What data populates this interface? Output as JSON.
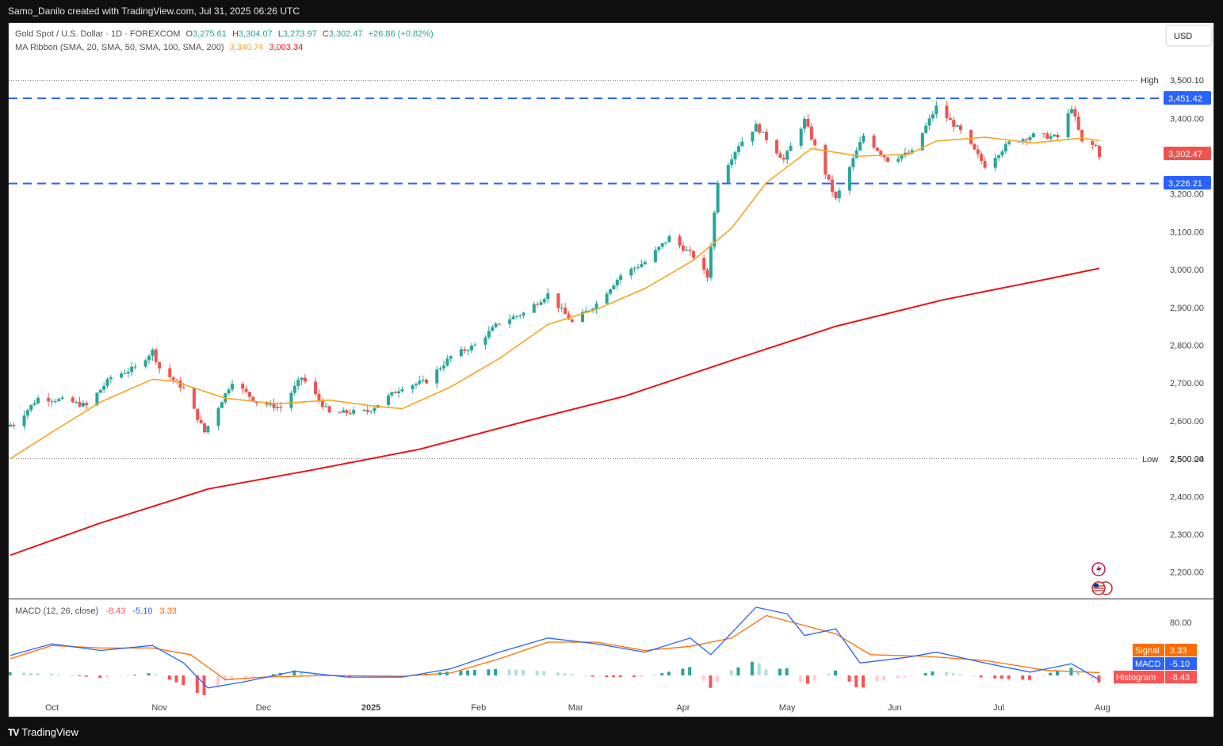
{
  "header": {
    "credit": "Samo_Danilo created with TradingView.com, Jul 31, 2025 06:26 UTC"
  },
  "legend": {
    "symbol": "Gold Spot / U.S. Dollar · 1D · FOREXCOM",
    "o_label": "O",
    "o": "3,275.61",
    "h_label": "H",
    "h": "3,304.07",
    "l_label": "L",
    "l": "3,273.97",
    "c_label": "C",
    "c": "3,302.47",
    "change": "+26.86 (+0.82%)",
    "ma_label": "MA Ribbon (SMA, 20, SMA, 50, SMA, 100, SMA, 200)",
    "ma1": "3,340.74",
    "ma2": "3,003.34",
    "macd_label": "MACD (12, 26, close)",
    "macd_v1": "-8.43",
    "macd_v2": "-5.10",
    "macd_v3": "3.33"
  },
  "currency_button": "USD",
  "price_axis": {
    "ticks": [
      "3,400.00",
      "3,300.00",
      "3,200.00",
      "3,100.00",
      "3,000.00",
      "2,900.00",
      "2,800.00",
      "2,700.00",
      "2,600.00",
      "2,500.00",
      "2,400.00",
      "2,300.00",
      "2,200.00"
    ],
    "high_label": "High",
    "high_value": "3,500.10",
    "low_label": "Low",
    "low_value": "2,500.24",
    "resistance": "3,451.42",
    "support": "3,226.21",
    "last_price": "3,302.47"
  },
  "macd_axis": {
    "tick": "80.00",
    "signal_label": "Signal",
    "signal_value": "3.33",
    "macd_label": "MACD",
    "macd_value": "-5.10",
    "hist_label": "Histogram",
    "hist_value": "-8.43"
  },
  "time_axis": [
    "Oct",
    "Nov",
    "Dec",
    "2025",
    "Feb",
    "Mar",
    "Apr",
    "May",
    "Jun",
    "Jul",
    "Aug"
  ],
  "footer": {
    "brand": "TradingView"
  },
  "colors": {
    "up": "#26a69a",
    "down": "#ef5350",
    "sma20": "#f5a623",
    "sma200": "#e8151b",
    "hline": "#2962ff",
    "macd": "#2962ff",
    "signal": "#ff6d00",
    "hist_pos_strong": "#26a69a",
    "hist_pos_weak": "#b2dfdb",
    "hist_neg_strong": "#ff5252",
    "hist_neg_weak": "#ffcdd2"
  },
  "chart_data": {
    "type": "candlestick",
    "title": "Gold Spot / U.S. Dollar · 1D · FOREXCOM",
    "x_range": [
      "2024-09-19",
      "2025-07-30"
    ],
    "ylim": [
      2160,
      3560
    ],
    "series": [
      {
        "name": "Price (close, approx. weekly path)",
        "points": [
          [
            "2024-09-20",
            2590
          ],
          [
            "2024-09-27",
            2660
          ],
          [
            "2024-10-04",
            2655
          ],
          [
            "2024-10-11",
            2640
          ],
          [
            "2024-10-18",
            2715
          ],
          [
            "2024-10-25",
            2740
          ],
          [
            "2024-10-30",
            2785
          ],
          [
            "2024-11-01",
            2740
          ],
          [
            "2024-11-08",
            2685
          ],
          [
            "2024-11-14",
            2570
          ],
          [
            "2024-11-22",
            2705
          ],
          [
            "2024-11-29",
            2650
          ],
          [
            "2024-12-06",
            2635
          ],
          [
            "2024-12-12",
            2715
          ],
          [
            "2024-12-20",
            2620
          ],
          [
            "2024-12-31",
            2625
          ],
          [
            "2025-01-10",
            2690
          ],
          [
            "2025-01-17",
            2705
          ],
          [
            "2025-01-24",
            2770
          ],
          [
            "2025-01-31",
            2800
          ],
          [
            "2025-02-07",
            2860
          ],
          [
            "2025-02-14",
            2885
          ],
          [
            "2025-02-21",
            2935
          ],
          [
            "2025-02-28",
            2860
          ],
          [
            "2025-03-07",
            2910
          ],
          [
            "2025-03-14",
            2985
          ],
          [
            "2025-03-21",
            3020
          ],
          [
            "2025-03-28",
            3085
          ],
          [
            "2025-04-04",
            3035
          ],
          [
            "2025-04-08",
            2980
          ],
          [
            "2025-04-11",
            3235
          ],
          [
            "2025-04-17",
            3330
          ],
          [
            "2025-04-22",
            3380
          ],
          [
            "2025-04-30",
            3290
          ],
          [
            "2025-05-06",
            3395
          ],
          [
            "2025-05-09",
            3325
          ],
          [
            "2025-05-15",
            3185
          ],
          [
            "2025-05-23",
            3355
          ],
          [
            "2025-05-30",
            3290
          ],
          [
            "2025-06-06",
            3310
          ],
          [
            "2025-06-13",
            3430
          ],
          [
            "2025-06-20",
            3365
          ],
          [
            "2025-06-27",
            3275
          ],
          [
            "2025-07-04",
            3335
          ],
          [
            "2025-07-11",
            3355
          ],
          [
            "2025-07-18",
            3350
          ],
          [
            "2025-07-22",
            3430
          ],
          [
            "2025-07-25",
            3336
          ],
          [
            "2025-07-29",
            3326
          ],
          [
            "2025-07-30",
            3302.47
          ]
        ]
      },
      {
        "name": "SMA 20",
        "points": [
          [
            "2024-09-19",
            2500
          ],
          [
            "2024-10-01",
            2570
          ],
          [
            "2024-10-15",
            2650
          ],
          [
            "2024-10-30",
            2710
          ],
          [
            "2024-11-05",
            2705
          ],
          [
            "2024-11-20",
            2660
          ],
          [
            "2024-12-05",
            2645
          ],
          [
            "2024-12-20",
            2655
          ],
          [
            "2025-01-01",
            2640
          ],
          [
            "2025-01-10",
            2632
          ],
          [
            "2025-01-24",
            2690
          ],
          [
            "2025-02-07",
            2765
          ],
          [
            "2025-02-21",
            2855
          ],
          [
            "2025-03-07",
            2895
          ],
          [
            "2025-03-21",
            2950
          ],
          [
            "2025-04-04",
            3025
          ],
          [
            "2025-04-15",
            3110
          ],
          [
            "2025-04-25",
            3230
          ],
          [
            "2025-05-08",
            3320
          ],
          [
            "2025-05-22",
            3300
          ],
          [
            "2025-06-05",
            3305
          ],
          [
            "2025-06-13",
            3340
          ],
          [
            "2025-06-27",
            3350
          ],
          [
            "2025-07-11",
            3335
          ],
          [
            "2025-07-25",
            3348
          ],
          [
            "2025-07-30",
            3340.74
          ]
        ]
      },
      {
        "name": "SMA 200",
        "points": [
          [
            "2024-09-19",
            2245
          ],
          [
            "2024-10-15",
            2330
          ],
          [
            "2024-11-15",
            2420
          ],
          [
            "2024-12-15",
            2470
          ],
          [
            "2025-01-15",
            2525
          ],
          [
            "2025-02-15",
            2600
          ],
          [
            "2025-03-15",
            2665
          ],
          [
            "2025-04-15",
            2760
          ],
          [
            "2025-05-15",
            2850
          ],
          [
            "2025-06-15",
            2920
          ],
          [
            "2025-07-15",
            2975
          ],
          [
            "2025-07-30",
            3003.34
          ]
        ]
      }
    ],
    "horizontal_lines": [
      {
        "label": "High",
        "value": 3500.1
      },
      {
        "label": "Low",
        "value": 2500.24
      },
      {
        "value": 3451.42
      },
      {
        "value": 3226.21
      }
    ],
    "last": {
      "open": 3275.61,
      "high": 3304.07,
      "low": 3273.97,
      "close": 3302.47,
      "change": 26.86,
      "change_pct": 0.82
    },
    "macd": {
      "label": "MACD (12, 26, close)",
      "ylim": [
        -30,
        100
      ],
      "macd_line": [
        [
          "2024-09-19",
          24
        ],
        [
          "2024-10-01",
          38
        ],
        [
          "2024-10-15",
          30
        ],
        [
          "2024-10-30",
          36
        ],
        [
          "2024-11-08",
          15
        ],
        [
          "2024-11-15",
          -15
        ],
        [
          "2024-11-25",
          -8
        ],
        [
          "2024-12-10",
          5
        ],
        [
          "2024-12-25",
          -2
        ],
        [
          "2025-01-10",
          -2
        ],
        [
          "2025-01-24",
          8
        ],
        [
          "2025-02-07",
          28
        ],
        [
          "2025-02-21",
          45
        ],
        [
          "2025-03-07",
          38
        ],
        [
          "2025-03-21",
          28
        ],
        [
          "2025-04-03",
          45
        ],
        [
          "2025-04-09",
          25
        ],
        [
          "2025-04-22",
          82
        ],
        [
          "2025-05-01",
          74
        ],
        [
          "2025-05-06",
          48
        ],
        [
          "2025-05-15",
          56
        ],
        [
          "2025-05-22",
          15
        ],
        [
          "2025-06-05",
          22
        ],
        [
          "2025-06-13",
          28
        ],
        [
          "2025-06-27",
          15
        ],
        [
          "2025-07-10",
          4
        ],
        [
          "2025-07-22",
          14
        ],
        [
          "2025-07-30",
          -5.1
        ]
      ],
      "signal_line": [
        [
          "2024-09-19",
          20
        ],
        [
          "2024-10-01",
          36
        ],
        [
          "2024-10-15",
          33
        ],
        [
          "2024-10-30",
          33
        ],
        [
          "2024-11-10",
          25
        ],
        [
          "2024-11-20",
          -5
        ],
        [
          "2024-12-01",
          -2
        ],
        [
          "2024-12-20",
          0
        ],
        [
          "2025-01-10",
          -1
        ],
        [
          "2025-01-24",
          3
        ],
        [
          "2025-02-07",
          20
        ],
        [
          "2025-02-21",
          40
        ],
        [
          "2025-03-07",
          40
        ],
        [
          "2025-03-21",
          30
        ],
        [
          "2025-04-03",
          35
        ],
        [
          "2025-04-15",
          45
        ],
        [
          "2025-04-25",
          72
        ],
        [
          "2025-05-06",
          60
        ],
        [
          "2025-05-15",
          50
        ],
        [
          "2025-05-25",
          25
        ],
        [
          "2025-06-10",
          23
        ],
        [
          "2025-06-27",
          18
        ],
        [
          "2025-07-15",
          6
        ],
        [
          "2025-07-30",
          3.33
        ]
      ],
      "histogram_last": -8.43
    }
  }
}
